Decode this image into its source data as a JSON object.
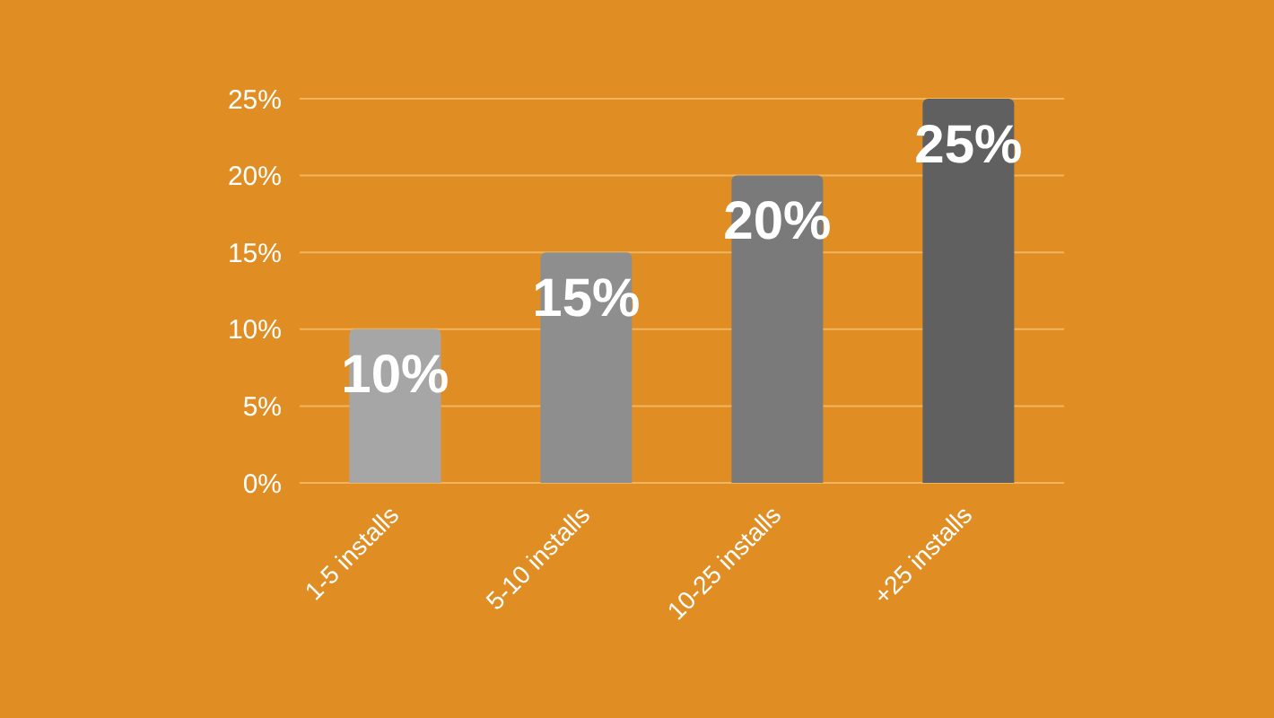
{
  "chart_data": {
    "type": "bar",
    "categories": [
      "1-5 installs",
      "5-10 installs",
      "10-25 installs",
      "+25 installs"
    ],
    "values": [
      10,
      15,
      20,
      25
    ],
    "colors": [
      "#a6a6a6",
      "#8e8e8e",
      "#7a7a7a",
      "#606060"
    ],
    "ylim": [
      0,
      25
    ],
    "yticks": [
      {
        "value": 0,
        "label": "0%"
      },
      {
        "value": 5,
        "label": "5%"
      },
      {
        "value": 10,
        "label": "10%"
      },
      {
        "value": 15,
        "label": "15%"
      },
      {
        "value": 20,
        "label": "20%"
      },
      {
        "value": 25,
        "label": "25%"
      }
    ],
    "value_labels": [
      "10%",
      "15%",
      "20%",
      "25%"
    ],
    "grid": "y"
  }
}
